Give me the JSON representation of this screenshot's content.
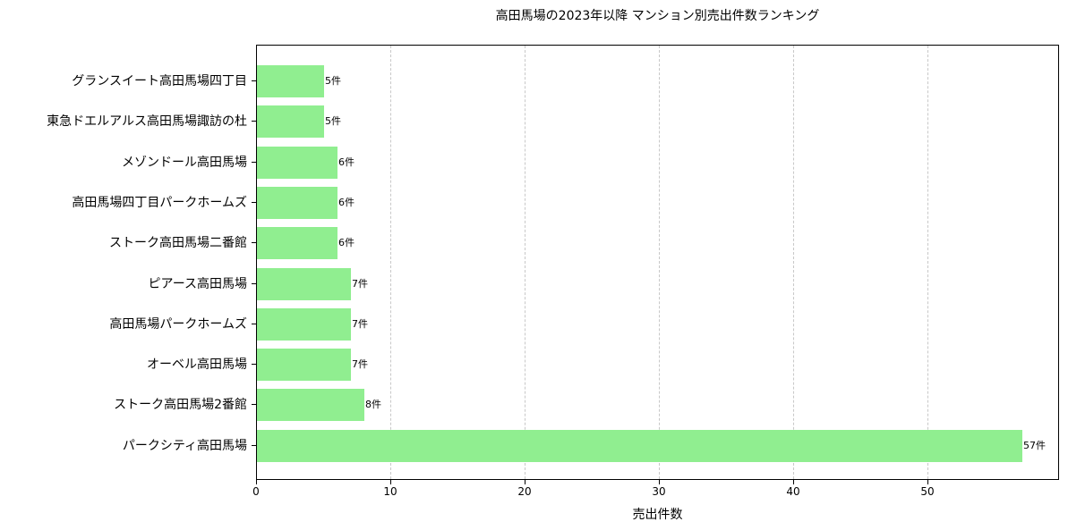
{
  "chart_data": {
    "type": "bar",
    "orientation": "horizontal",
    "title": "高田馬場の2023年以降 マンション別売出件数ランキング",
    "xlabel": "売出件数",
    "ylabel": "",
    "xlim": [
      0,
      59.8
    ],
    "xticks": [
      0,
      10,
      20,
      30,
      40,
      50
    ],
    "grid": {
      "x": true,
      "y": false,
      "style": "dashed"
    },
    "bar_color": "#90ee90",
    "categories": [
      "グランスイート高田馬場四丁目",
      "東急ドエルアルス高田馬場諏訪の杜",
      "メゾンドール高田馬場",
      "高田馬場四丁目パークホームズ",
      "ストーク高田馬場二番館",
      "ピアース高田馬場",
      "高田馬場パークホームズ",
      "オーベル高田馬場",
      "ストーク高田馬場2番館",
      "パークシティ高田馬場"
    ],
    "values": [
      5,
      5,
      6,
      6,
      6,
      7,
      7,
      7,
      8,
      57
    ],
    "value_labels": [
      "5件",
      "5件",
      "6件",
      "6件",
      "6件",
      "7件",
      "7件",
      "7件",
      "8件",
      "57件"
    ]
  }
}
